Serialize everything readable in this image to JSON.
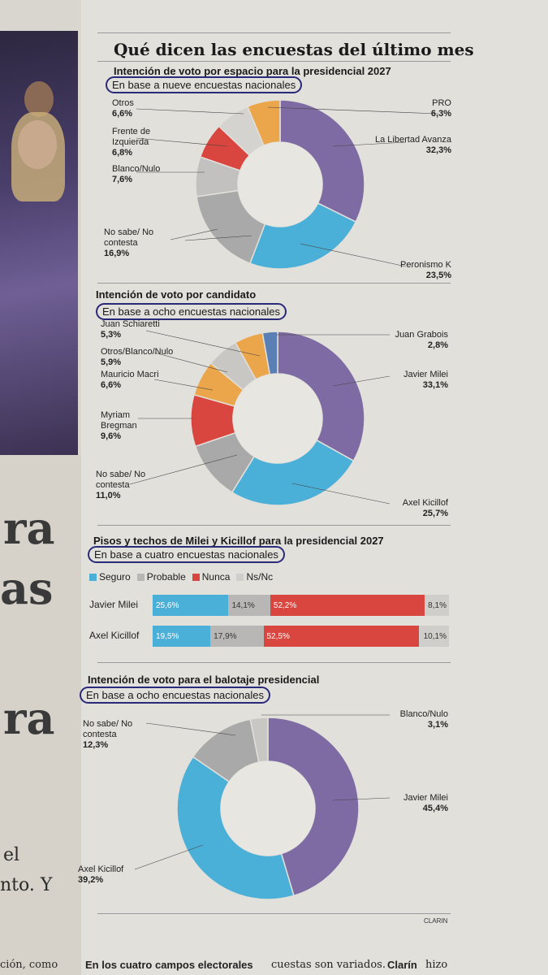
{
  "page": {
    "title": "Qué dicen las encuestas del último mes",
    "source": "CLARIN"
  },
  "left": {
    "letters": [
      "ra",
      "as",
      "ra"
    ],
    "fragments": [
      "el",
      "nto. Y",
      "ción, como"
    ]
  },
  "footer": {
    "bold": "En los cuatro campos electorales",
    "regular": "cuestas son variados.",
    "bold2": "Clarín",
    "regular2": "hizo"
  },
  "chart_data": [
    {
      "type": "pie",
      "title": "Intención de voto por espacio para la presidencial 2027",
      "subtitle": "En base a nueve encuestas nacionales",
      "slices": [
        {
          "name": "La Libertad Avanza",
          "value": 32.3,
          "label": "32,3%",
          "color": "#7e6ba3"
        },
        {
          "name": "Peronismo K",
          "value": 23.5,
          "label": "23,5%",
          "color": "#4bb0d8"
        },
        {
          "name": "No sabe/ No contesta",
          "value": 16.9,
          "label": "16,9%",
          "color": "#a9a9a9"
        },
        {
          "name": "Blanco/Nulo",
          "value": 7.6,
          "label": "7,6%",
          "color": "#c2c1bf"
        },
        {
          "name": "Frente de Izquierda",
          "value": 6.8,
          "label": "6,8%",
          "color": "#d9463f"
        },
        {
          "name": "Otros",
          "value": 6.6,
          "label": "6,6%",
          "color": "#d4d3d0"
        },
        {
          "name": "PRO",
          "value": 6.3,
          "label": "6,3%",
          "color": "#eba64b"
        }
      ]
    },
    {
      "type": "pie",
      "title": "Intención de voto por candidato",
      "subtitle": "En base a ocho encuestas nacionales",
      "slices": [
        {
          "name": "Javier Milei",
          "value": 33.1,
          "label": "33,1%",
          "color": "#7e6ba3"
        },
        {
          "name": "Axel Kicillof",
          "value": 25.7,
          "label": "25,7%",
          "color": "#4bb0d8"
        },
        {
          "name": "No sabe/ No contesta",
          "value": 11.0,
          "label": "11,0%",
          "color": "#a9a9a9"
        },
        {
          "name": "Myriam Bregman",
          "value": 9.6,
          "label": "9,6%",
          "color": "#d9463f"
        },
        {
          "name": "Mauricio Macri",
          "value": 6.6,
          "label": "6,6%",
          "color": "#eba64b"
        },
        {
          "name": "Otros/Blanco/Nulo",
          "value": 5.9,
          "label": "5,9%",
          "color": "#c8c7c4"
        },
        {
          "name": "Juan Schiaretti",
          "value": 5.3,
          "label": "5,3%",
          "color": "#eba64b"
        },
        {
          "name": "Juan Grabois",
          "value": 2.8,
          "label": "2,8%",
          "color": "#5a7fb5"
        }
      ]
    },
    {
      "type": "bar",
      "title": "Pisos y techos de Milei y Kicillof para la presidencial 2027",
      "subtitle": "En base a cuatro encuestas nacionales",
      "legend": [
        {
          "name": "Seguro",
          "color": "#4bb0d8"
        },
        {
          "name": "Probable",
          "color": "#b8b7b5"
        },
        {
          "name": "Nunca",
          "color": "#d9463f"
        },
        {
          "name": "Ns/Nc",
          "color": "#cfcecb"
        }
      ],
      "categories": [
        "Javier Milei",
        "Axel Kicillof"
      ],
      "series": [
        {
          "name": "Seguro",
          "values": [
            25.6,
            19.5
          ],
          "labels": [
            "25,6%",
            "19,5%"
          ]
        },
        {
          "name": "Probable",
          "values": [
            14.1,
            17.9
          ],
          "labels": [
            "14,1%",
            "17,9%"
          ]
        },
        {
          "name": "Nunca",
          "values": [
            52.2,
            52.5
          ],
          "labels": [
            "52,2%",
            "52,5%"
          ]
        },
        {
          "name": "Ns/Nc",
          "values": [
            8.1,
            10.1
          ],
          "labels": [
            "8,1%",
            "10,1%"
          ]
        }
      ]
    },
    {
      "type": "pie",
      "title": "Intención de voto para el balotaje presidencial",
      "subtitle": "En base a ocho encuestas nacionales",
      "slices": [
        {
          "name": "Javier Milei",
          "value": 45.4,
          "label": "45,4%",
          "color": "#7e6ba3"
        },
        {
          "name": "Axel Kicillof",
          "value": 39.2,
          "label": "39,2%",
          "color": "#4bb0d8"
        },
        {
          "name": "No sabe/ No contesta",
          "value": 12.3,
          "label": "12,3%",
          "color": "#a9a9a9"
        },
        {
          "name": "Blanco/Nulo",
          "value": 3.1,
          "label": "3,1%",
          "color": "#c8c7c4"
        }
      ]
    }
  ]
}
